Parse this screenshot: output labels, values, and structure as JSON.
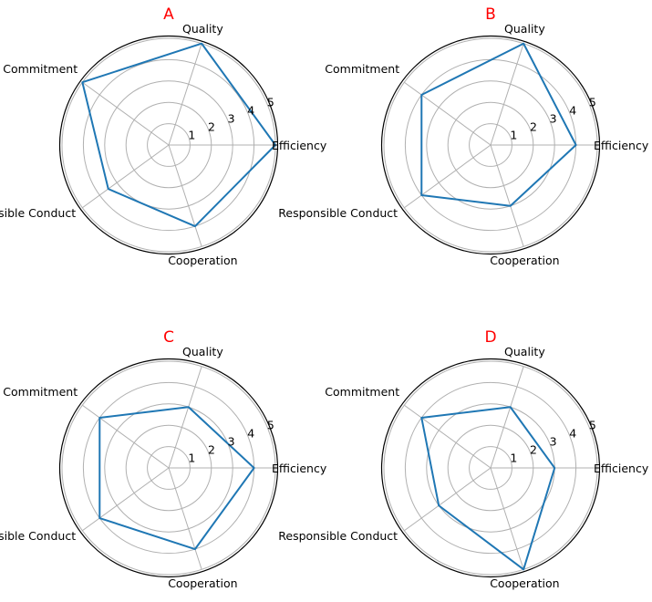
{
  "style": {
    "title_color": "#ff0000",
    "series_color": "#1f77b4",
    "grid_color": "#b0b0b0",
    "frame_color": "#000000"
  },
  "chart_data": [
    {
      "type": "radar",
      "title": "A",
      "axes": [
        "Efficiency",
        "Quality",
        "Commitment",
        "Responsible Conduct",
        "Cooperation"
      ],
      "rlim": [
        0,
        5
      ],
      "rticks": [
        1,
        2,
        3,
        4,
        5
      ],
      "values": [
        5,
        5,
        5,
        3.5,
        4
      ],
      "grid": true
    },
    {
      "type": "radar",
      "title": "B",
      "axes": [
        "Efficiency",
        "Quality",
        "Commitment",
        "Responsible Conduct",
        "Cooperation"
      ],
      "rlim": [
        0,
        5
      ],
      "rticks": [
        1,
        2,
        3,
        4,
        5
      ],
      "values": [
        4,
        5,
        4,
        4,
        3
      ],
      "grid": true
    },
    {
      "type": "radar",
      "title": "C",
      "axes": [
        "Efficiency",
        "Quality",
        "Commitment",
        "Responsible Conduct",
        "Cooperation"
      ],
      "rlim": [
        0,
        5
      ],
      "rticks": [
        1,
        2,
        3,
        4,
        5
      ],
      "values": [
        4,
        3,
        4,
        4,
        4
      ],
      "grid": true
    },
    {
      "type": "radar",
      "title": "D",
      "axes": [
        "Efficiency",
        "Quality",
        "Commitment",
        "Responsible Conduct",
        "Cooperation"
      ],
      "rlim": [
        0,
        5
      ],
      "rticks": [
        1,
        2,
        3,
        4,
        5
      ],
      "values": [
        3,
        3,
        4,
        3,
        5
      ],
      "grid": true
    }
  ]
}
